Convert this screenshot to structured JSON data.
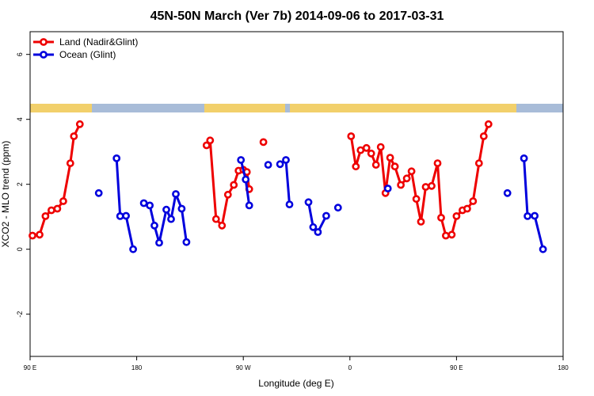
{
  "chart_data": {
    "type": "line",
    "title": "45N-50N March (Ver 7b)   2014-09-06 to 2017-03-31",
    "xlabel": "Longitude (deg E)",
    "ylabel": "XCO2 - MLO trend (ppm)",
    "xlim": [
      90,
      540
    ],
    "ylim": [
      -3.3,
      6.7
    ],
    "x_ticks": [
      {
        "value": 90,
        "label": "90 E"
      },
      {
        "value": 180,
        "label": "180"
      },
      {
        "value": 270,
        "label": "90 W"
      },
      {
        "value": 360,
        "label": "0"
      },
      {
        "value": 450,
        "label": "90 E"
      },
      {
        "value": 540,
        "label": "180"
      }
    ],
    "y_ticks": [
      -2,
      0,
      2,
      4,
      6
    ],
    "legend_position": "top-left",
    "land_band_colors": {
      "land": "#f2d06b",
      "ocean": "#a8bcd8"
    },
    "series": [
      {
        "name": "Land (Nadir&Glint)",
        "color": "#ee0000",
        "segments": [
          [
            [
              92,
              0.42
            ],
            [
              98,
              0.45
            ],
            [
              103,
              1.02
            ],
            [
              108,
              1.2
            ],
            [
              113,
              1.25
            ],
            [
              118,
              1.48
            ],
            [
              124,
              2.65
            ],
            [
              127,
              3.48
            ],
            [
              132,
              3.85
            ]
          ],
          [
            [
              239,
              3.2
            ],
            [
              242,
              3.35
            ],
            [
              247,
              0.93
            ],
            [
              252,
              0.73
            ],
            [
              257,
              1.68
            ],
            [
              262,
              1.98
            ],
            [
              266,
              2.42
            ],
            [
              270,
              2.45
            ],
            [
              273,
              2.38
            ],
            [
              275,
              1.85
            ]
          ],
          [
            [
              287,
              3.3
            ]
          ],
          [
            [
              361,
              3.48
            ],
            [
              365,
              2.55
            ],
            [
              369,
              3.05
            ],
            [
              374,
              3.12
            ],
            [
              378,
              2.95
            ],
            [
              382,
              2.6
            ],
            [
              386,
              3.15
            ],
            [
              390,
              1.73
            ],
            [
              394,
              2.82
            ],
            [
              398,
              2.55
            ],
            [
              403,
              1.98
            ],
            [
              408,
              2.18
            ],
            [
              412,
              2.4
            ],
            [
              416,
              1.55
            ],
            [
              420,
              0.85
            ],
            [
              424,
              1.92
            ],
            [
              429,
              1.95
            ],
            [
              434,
              2.65
            ],
            [
              437,
              0.97
            ],
            [
              441,
              0.42
            ],
            [
              446,
              0.45
            ],
            [
              450,
              1.02
            ],
            [
              455,
              1.2
            ],
            [
              459,
              1.25
            ],
            [
              464,
              1.48
            ],
            [
              469,
              2.65
            ],
            [
              473,
              3.48
            ],
            [
              477,
              3.85
            ]
          ]
        ]
      },
      {
        "name": "Ocean (Glint)",
        "color": "#0000dd",
        "segments": [
          [
            [
              148,
              1.73
            ]
          ],
          [
            [
              163,
              2.8
            ],
            [
              166,
              1.02
            ],
            [
              171,
              1.03
            ],
            [
              177,
              0.0
            ]
          ],
          [
            [
              186,
              1.42
            ],
            [
              191,
              1.35
            ],
            [
              195,
              0.73
            ],
            [
              199,
              0.2
            ],
            [
              205,
              1.22
            ],
            [
              209,
              0.93
            ],
            [
              213,
              1.7
            ],
            [
              218,
              1.25
            ],
            [
              222,
              0.22
            ]
          ],
          [
            [
              268,
              2.75
            ],
            [
              272,
              2.15
            ],
            [
              275,
              1.35
            ]
          ],
          [
            [
              291,
              2.6
            ]
          ],
          [
            [
              301,
              2.62
            ],
            [
              306,
              2.75
            ],
            [
              309,
              1.38
            ]
          ],
          [
            [
              325,
              1.45
            ],
            [
              329,
              0.68
            ],
            [
              333,
              0.53
            ],
            [
              340,
              1.03
            ]
          ],
          [
            [
              350,
              1.28
            ]
          ],
          [
            [
              392,
              1.87
            ]
          ],
          [
            [
              493,
              1.73
            ]
          ],
          [
            [
              507,
              2.8
            ],
            [
              510,
              1.02
            ],
            [
              516,
              1.03
            ],
            [
              523,
              0.0
            ]
          ]
        ]
      }
    ]
  }
}
